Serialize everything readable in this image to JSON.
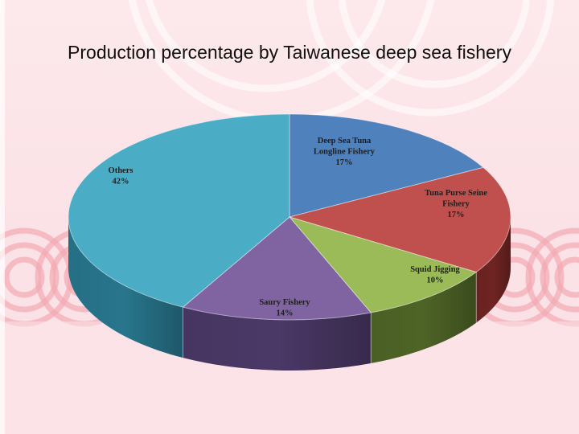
{
  "slide": {
    "title": "Production percentage by Taiwanese deep sea fishery"
  },
  "chart_data": {
    "type": "pie",
    "style": "3d",
    "title": "Production percentage by Taiwanese deep sea fishery",
    "slices": [
      {
        "label_lines": [
          "Deep Sea Tuna",
          "Longline Fishery",
          "17%"
        ],
        "name": "Deep Sea Tuna Longline Fishery",
        "value": 17,
        "color": "#4f81bd",
        "side": "#2f527c"
      },
      {
        "label_lines": [
          "Tuna Purse Seine",
          "Fishery",
          "17%"
        ],
        "name": "Tuna Purse Seine Fishery",
        "value": 17,
        "color": "#c0504d",
        "side": "#6e2422"
      },
      {
        "label_lines": [
          "Squid Jigging",
          "10%"
        ],
        "name": "Squid Jigging",
        "value": 10,
        "color": "#9bbb59",
        "side": "#4e6426"
      },
      {
        "label_lines": [
          "Saury Fishery",
          "14%"
        ],
        "name": "Saury Fishery",
        "value": 14,
        "color": "#8064a2",
        "side": "#4a3866"
      },
      {
        "label_lines": [
          "Others",
          "42%"
        ],
        "name": "Others",
        "value": 42,
        "color": "#4bacc6",
        "side": "#28758c"
      }
    ]
  }
}
